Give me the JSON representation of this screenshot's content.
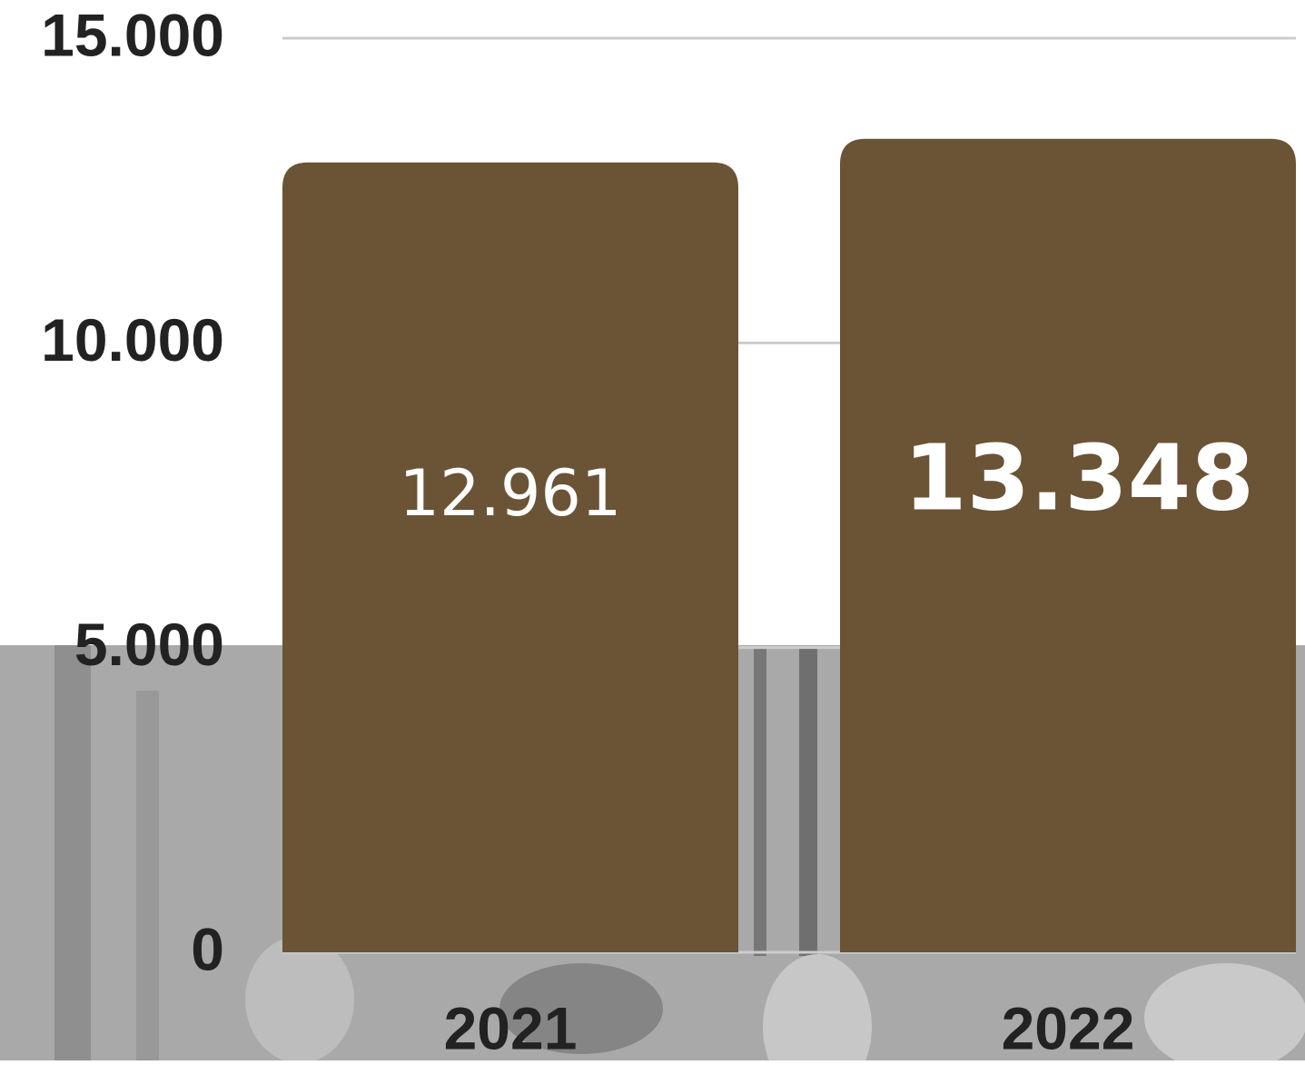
{
  "chart_data": {
    "type": "bar",
    "categories": [
      "2021",
      "2022"
    ],
    "values": [
      12961,
      13348
    ],
    "value_labels": [
      "12.961",
      "13.348"
    ],
    "color": "#6b5336",
    "ylim": [
      0,
      15000
    ],
    "yticks": [
      0,
      {
        "value": 5000,
        "label": "5.000"
      },
      {
        "value": 10000,
        "label": "10.000"
      },
      {
        "value": 15000,
        "label": "15.000"
      }
    ],
    "grid": true
  }
}
